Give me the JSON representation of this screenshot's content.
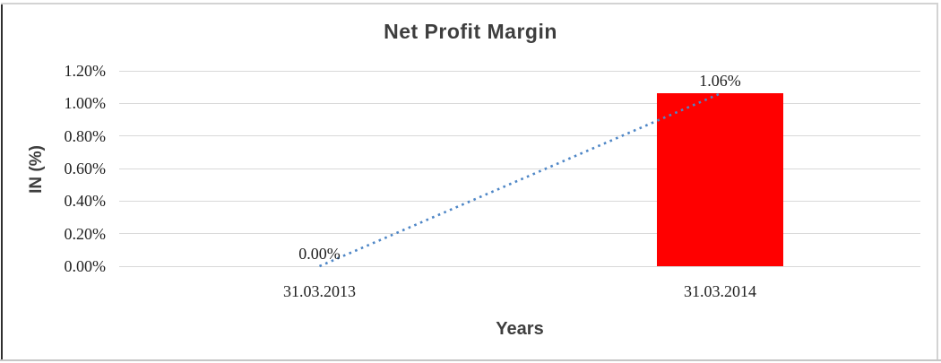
{
  "chart_data": {
    "type": "bar",
    "title": "Net Profit Margin",
    "xlabel": "Years",
    "ylabel": "IN (%)",
    "categories": [
      "31.03.2013",
      "31.03.2014"
    ],
    "values": [
      0.0,
      1.06
    ],
    "data_labels": [
      "0.00%",
      "1.06%"
    ],
    "ytick_values": [
      0,
      0.2,
      0.4,
      0.6,
      0.8,
      1.0,
      1.2
    ],
    "ytick_labels": [
      "0.00%",
      "0.20%",
      "0.40%",
      "0.60%",
      "0.80%",
      "1.00%",
      "1.20%"
    ],
    "ylim": [
      0,
      1.2
    ],
    "grid": true,
    "legend": false,
    "bar_color": "#FF0000",
    "gridline_color": "#D9D9D9",
    "label_color": "#1F1F1F",
    "title_color": "#3E3E3E",
    "trendline": {
      "type": "linear",
      "style": "dotted",
      "color": "#4E86C6"
    },
    "frame_colors": {
      "left": "#2F2F2F",
      "top": "#D3D3D3",
      "right": "#D3D3D3",
      "bottom": "#C6C6C6"
    }
  }
}
